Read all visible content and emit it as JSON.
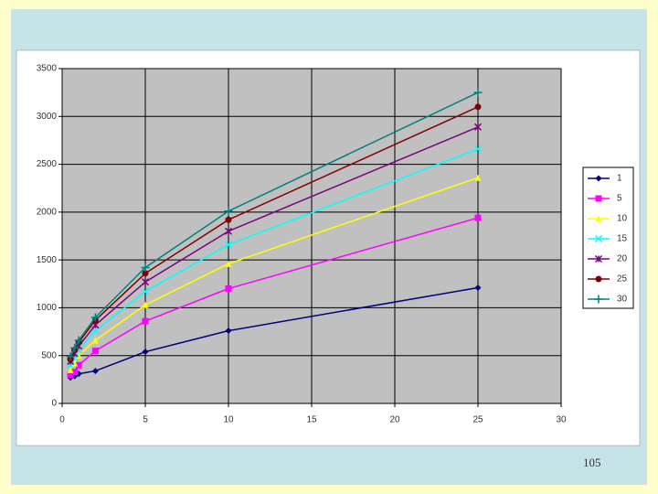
{
  "chart_data": {
    "type": "line",
    "x": [
      0.5,
      0.75,
      1,
      2,
      5,
      10,
      25
    ],
    "series": [
      {
        "name": "1",
        "color": "#000080",
        "marker": "diamond",
        "values": [
          270,
          285,
          310,
          340,
          540,
          760,
          1210
        ]
      },
      {
        "name": "5",
        "color": "#ff00ff",
        "marker": "square",
        "values": [
          300,
          330,
          400,
          550,
          860,
          1200,
          1940
        ]
      },
      {
        "name": "10",
        "color": "#ffff00",
        "marker": "triangle",
        "values": [
          350,
          420,
          500,
          660,
          1030,
          1460,
          2360
        ]
      },
      {
        "name": "15",
        "color": "#00ffff",
        "marker": "x",
        "values": [
          400,
          480,
          560,
          760,
          1170,
          1660,
          2660
        ]
      },
      {
        "name": "20",
        "color": "#800080",
        "marker": "star",
        "values": [
          440,
          520,
          600,
          820,
          1270,
          1800,
          2890
        ]
      },
      {
        "name": "25",
        "color": "#800000",
        "marker": "circle",
        "values": [
          460,
          560,
          640,
          870,
          1360,
          1920,
          3100
        ]
      },
      {
        "name": "30",
        "color": "#008080",
        "marker": "plus",
        "values": [
          490,
          580,
          660,
          900,
          1420,
          2010,
          3250
        ]
      }
    ],
    "xlim": [
      0,
      30
    ],
    "xticks": [
      0,
      5,
      10,
      15,
      20,
      25,
      30
    ],
    "ylim": [
      0,
      3500
    ],
    "yticks": [
      0,
      500,
      1000,
      1500,
      2000,
      2500,
      3000,
      3500
    ],
    "grid": true,
    "legend": "right"
  },
  "page_number": "105"
}
